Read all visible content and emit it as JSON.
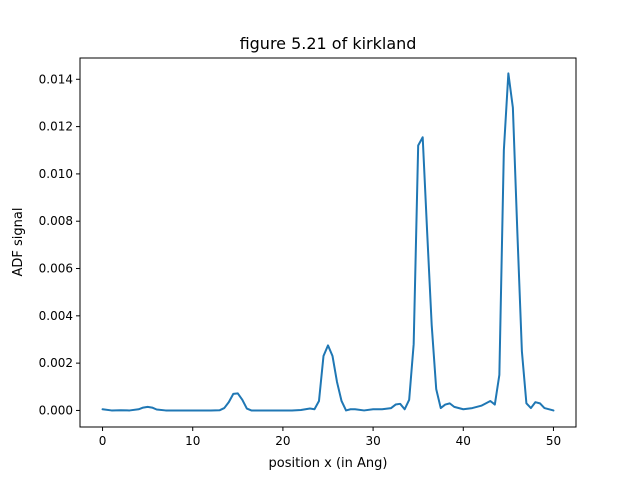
{
  "chart_data": {
    "type": "line",
    "title": "figure 5.21 of kirkland",
    "xlabel": "position x (in Ang)",
    "ylabel": "ADF signal",
    "xlim": [
      -2.5,
      52.5
    ],
    "ylim": [
      -0.0007,
      0.0149
    ],
    "xticks": [
      0,
      10,
      20,
      30,
      40,
      50
    ],
    "yticks": [
      0.0,
      0.002,
      0.004,
      0.006,
      0.008,
      0.01,
      0.012,
      0.014
    ],
    "ytick_labels": [
      "0.000",
      "0.002",
      "0.004",
      "0.006",
      "0.008",
      "0.010",
      "0.012",
      "0.014"
    ],
    "grid": false,
    "colors": {
      "series": "#1f77b4"
    },
    "series": [
      {
        "x": [
          0,
          1,
          2,
          3,
          4,
          4.5,
          5,
          5.5,
          6,
          7,
          8,
          10,
          12,
          13,
          13.5,
          14,
          14.5,
          15,
          15.5,
          16,
          16.5,
          17,
          18,
          20,
          21,
          22,
          23,
          23.5,
          24,
          24.5,
          25,
          25.5,
          26,
          26.5,
          27,
          27.5,
          28,
          29,
          30,
          31,
          32,
          32.5,
          33,
          33.5,
          34,
          34.5,
          35,
          35.5,
          36,
          36.5,
          37,
          37.5,
          38,
          38.5,
          39,
          40,
          41,
          42,
          43,
          43.5,
          44,
          44.5,
          45,
          45.5,
          46,
          46.5,
          47,
          47.5,
          48,
          48.5,
          49,
          50
        ],
        "y": [
          5e-05,
          0.0,
          1e-05,
          0.0,
          5e-05,
          0.00012,
          0.00015,
          0.00012,
          4e-05,
          0.0,
          0.0,
          0.0,
          0.0,
          1e-05,
          0.0001,
          0.00035,
          0.0007,
          0.00072,
          0.00045,
          8e-05,
          0.0,
          0.0,
          0.0,
          0.0,
          0.0,
          2e-05,
          8e-05,
          5e-05,
          0.0004,
          0.0023,
          0.00275,
          0.0023,
          0.0012,
          0.0004,
          0.0,
          5e-05,
          5e-05,
          0.0,
          5e-05,
          5e-05,
          0.0001,
          0.00025,
          0.00028,
          5e-05,
          0.00045,
          0.0028,
          0.0112,
          0.01155,
          0.0075,
          0.0036,
          0.0009,
          0.0001,
          0.00025,
          0.0003,
          0.00015,
          5e-05,
          0.0001,
          0.0002,
          0.0004,
          0.00025,
          0.0015,
          0.011,
          0.01425,
          0.0128,
          0.0075,
          0.0025,
          0.0003,
          0.0001,
          0.00035,
          0.0003,
          0.0001,
          0.0
        ]
      }
    ]
  }
}
